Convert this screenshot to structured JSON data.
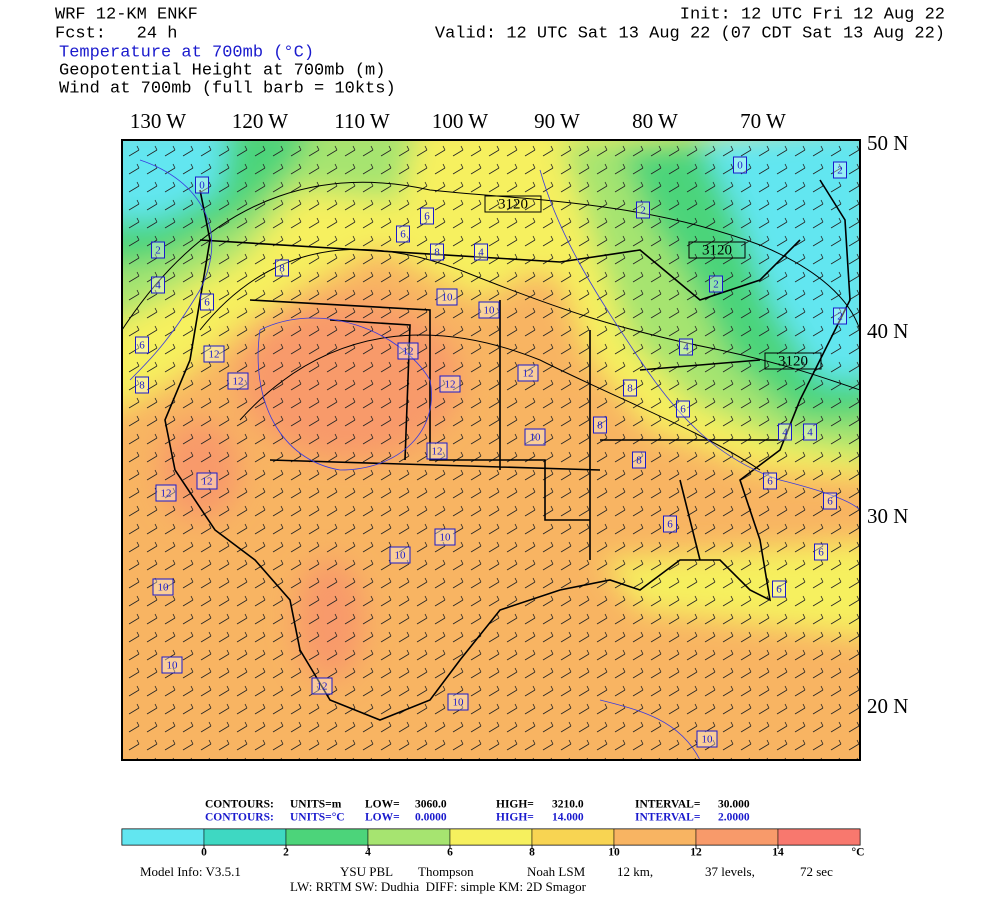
{
  "header": {
    "title": "WRF 12-KM ENKF",
    "forecast": "Fcst:   24 h",
    "init": "Init: 12 UTC Fri 12 Aug 22",
    "valid": "Valid: 12 UTC Sat 13 Aug 22 (07 CDT Sat 13 Aug 22)",
    "fields": [
      "Temperature at 700mb (°C)",
      "Geopotential Height at 700mb (m)",
      "Wind at 700mb (full barb = 10kts)"
    ]
  },
  "map": {
    "longitude_labels": [
      "130 W",
      "120 W",
      "110 W",
      "100 W",
      "90 W",
      "80 W",
      "70 W"
    ],
    "latitude_labels": [
      "50 N",
      "40 N",
      "30 N",
      "20 N"
    ],
    "contour_labels": [
      "0",
      "2",
      "4",
      "6",
      "6",
      "8",
      "12",
      "12",
      "8",
      "6",
      "6",
      "8",
      "4",
      "3120",
      "10",
      "10",
      "12",
      "12",
      "12",
      "10",
      "12",
      "12",
      "12",
      "10",
      "10",
      "12",
      "10",
      "10",
      "10",
      "10",
      "6",
      "8",
      "8",
      "8",
      "6",
      "4",
      "2",
      "3120",
      "2",
      "0",
      "2",
      "2",
      "3120",
      "4",
      "4",
      "6",
      "6",
      "6",
      "6"
    ]
  },
  "contour_info": [
    {
      "label": "CONTOURS:",
      "units": "UNITS=m",
      "low_label": "LOW=",
      "low": "3060.0",
      "high_label": "HIGH=",
      "high": "3210.0",
      "interval_label": "INTERVAL=",
      "interval": "30.000"
    },
    {
      "label": "CONTOURS:",
      "units": "UNITS=°C",
      "low_label": "LOW=",
      "low": "0.0000",
      "high_label": "HIGH=",
      "high": "14.000",
      "interval_label": "INTERVAL=",
      "interval": "2.0000"
    }
  ],
  "colorbar": {
    "ticks": [
      0,
      2,
      4,
      6,
      8,
      10,
      12,
      14
    ],
    "unit": "°C",
    "colors": [
      "#62e6f0",
      "#3ed8c2",
      "#4cd47a",
      "#a6e470",
      "#f6f05e",
      "#f8d452",
      "#f8b462",
      "#f89a6a",
      "#f8786e"
    ]
  },
  "footer": {
    "model_info": "Model Info: V3.5.1",
    "pbl": "YSU PBL",
    "microphysics": "Thompson",
    "lsm": "Noah LSM",
    "resolution": "12 km,",
    "levels": "37 levels,",
    "timestep": "72 sec",
    "physics": "LW: RRTM SW: Dudhia  DIFF: simple KM: 2D Smagor"
  }
}
